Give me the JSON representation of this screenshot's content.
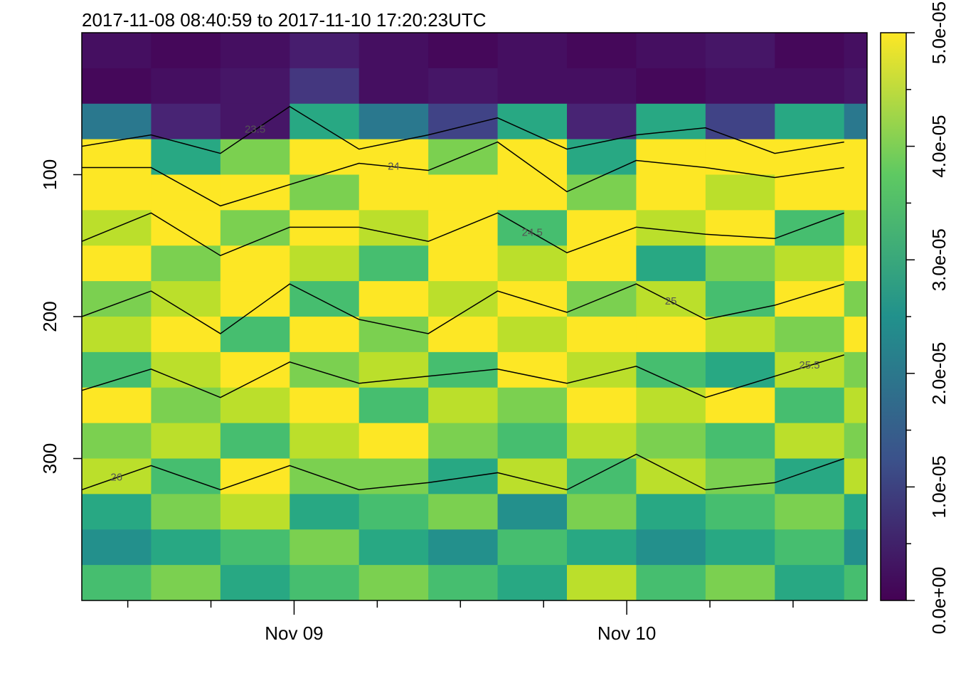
{
  "chart_data": {
    "type": "heatmap",
    "title": "2017-11-08 08:40:59 to 2017-11-10 17:20:23UTC",
    "xlim": [
      "2017-11-08 08:40:59",
      "2017-11-10 17:20:23"
    ],
    "xticks": [
      {
        "value": "2017-11-09 00:00:00",
        "label": "Nov 09"
      },
      {
        "value": "2017-11-10 00:00:00",
        "label": "Nov 10"
      }
    ],
    "xminorticks": [
      "2017-11-08 12:00:00",
      "2017-11-08 18:00:00",
      "2017-11-09 06:00:00",
      "2017-11-09 12:00:00",
      "2017-11-09 18:00:00",
      "2017-11-10 06:00:00",
      "2017-11-10 12:00:00"
    ],
    "ylim": [
      400,
      0
    ],
    "yticks": [
      100,
      200,
      300
    ],
    "x": [
      "2017-11-08 08:40:59",
      "2017-11-08 13:40:59",
      "2017-11-08 18:40:59",
      "2017-11-08 23:40:59",
      "2017-11-09 04:40:59",
      "2017-11-09 09:40:59",
      "2017-11-09 14:40:59",
      "2017-11-09 19:40:59",
      "2017-11-10 00:40:59",
      "2017-11-10 05:40:59",
      "2017-11-10 10:40:59",
      "2017-11-10 15:40:59"
    ],
    "y": [
      0,
      25,
      50,
      75,
      100,
      125,
      150,
      175,
      200,
      225,
      250,
      275,
      300,
      325,
      350,
      375
    ],
    "z": [
      [
        2e-06,
        1e-06,
        2e-06,
        4e-06,
        2e-06,
        1e-06,
        2e-06,
        1e-06,
        2e-06,
        3e-06,
        1e-06,
        2e-06
      ],
      [
        1e-06,
        2e-06,
        3e-06,
        8e-06,
        2e-06,
        3e-06,
        2e-06,
        2e-06,
        1e-06,
        2e-06,
        2e-06,
        3e-06
      ],
      [
        2e-05,
        5e-06,
        3e-06,
        3e-05,
        2e-05,
        1e-05,
        3e-05,
        5e-06,
        3e-05,
        1e-05,
        3e-05,
        2e-05
      ],
      [
        5e-05,
        3e-05,
        4e-05,
        5e-05,
        5e-05,
        4e-05,
        5e-05,
        3e-05,
        5e-05,
        5e-05,
        5e-05,
        5e-05
      ],
      [
        5e-05,
        5e-05,
        5e-05,
        4e-05,
        5e-05,
        5e-05,
        5e-05,
        4e-05,
        5e-05,
        4.5e-05,
        5e-05,
        5e-05
      ],
      [
        4.5e-05,
        5e-05,
        4e-05,
        5e-05,
        4.5e-05,
        5e-05,
        3.5e-05,
        5e-05,
        4.5e-05,
        5e-05,
        3.5e-05,
        4.5e-05
      ],
      [
        5e-05,
        4e-05,
        5e-05,
        4.5e-05,
        3.5e-05,
        5e-05,
        4.5e-05,
        5e-05,
        3e-05,
        4e-05,
        4.5e-05,
        5e-05
      ],
      [
        4e-05,
        4.5e-05,
        5e-05,
        3.5e-05,
        5e-05,
        4.5e-05,
        5e-05,
        4e-05,
        4.5e-05,
        3.5e-05,
        5e-05,
        4e-05
      ],
      [
        4.5e-05,
        5e-05,
        3.5e-05,
        5e-05,
        4e-05,
        5e-05,
        4.5e-05,
        5e-05,
        5e-05,
        4.5e-05,
        4e-05,
        5e-05
      ],
      [
        3.5e-05,
        4.5e-05,
        5e-05,
        4e-05,
        4.5e-05,
        3.5e-05,
        5e-05,
        4.5e-05,
        3.5e-05,
        3e-05,
        4.5e-05,
        4e-05
      ],
      [
        5e-05,
        4e-05,
        4.5e-05,
        5e-05,
        3.5e-05,
        4.5e-05,
        4e-05,
        5e-05,
        4.5e-05,
        5e-05,
        3.5e-05,
        4.5e-05
      ],
      [
        4e-05,
        4.5e-05,
        3.5e-05,
        4.5e-05,
        5e-05,
        4e-05,
        3.5e-05,
        4.5e-05,
        4e-05,
        3.5e-05,
        4.5e-05,
        4e-05
      ],
      [
        4.5e-05,
        3.5e-05,
        5e-05,
        4e-05,
        4e-05,
        3e-05,
        4.5e-05,
        3.5e-05,
        4.5e-05,
        4e-05,
        3e-05,
        4.5e-05
      ],
      [
        3e-05,
        4e-05,
        4.5e-05,
        3e-05,
        3.5e-05,
        4e-05,
        2.5e-05,
        4e-05,
        3e-05,
        3.5e-05,
        4e-05,
        3e-05
      ],
      [
        2.5e-05,
        3e-05,
        3.5e-05,
        4e-05,
        3e-05,
        2.5e-05,
        3.5e-05,
        3e-05,
        2.5e-05,
        3e-05,
        3.5e-05,
        2.5e-05
      ],
      [
        3.5e-05,
        4e-05,
        3e-05,
        3.5e-05,
        4e-05,
        3.5e-05,
        3e-05,
        4.5e-05,
        3.5e-05,
        4e-05,
        3e-05,
        3.5e-05
      ]
    ],
    "zlim": [
      0,
      5e-05
    ],
    "zticks": [
      {
        "value": 0,
        "label": "0.0e+00"
      },
      {
        "value": 1e-05,
        "label": "1.0e-05"
      },
      {
        "value": 2e-05,
        "label": "2.0e-05"
      },
      {
        "value": 3e-05,
        "label": "3.0e-05"
      },
      {
        "value": 4e-05,
        "label": "4.0e-05"
      },
      {
        "value": 5e-05,
        "label": "5.0e-05"
      }
    ],
    "contours": [
      {
        "level": 23.5,
        "y": [
          80,
          72,
          85,
          52,
          82,
          72,
          60,
          82,
          72,
          67,
          85,
          77
        ]
      },
      {
        "level": 24,
        "y": [
          95,
          95,
          122,
          107,
          92,
          97,
          77,
          112,
          90,
          95,
          102,
          95
        ]
      },
      {
        "level": 24.5,
        "y": [
          147,
          127,
          157,
          137,
          137,
          147,
          127,
          155,
          137,
          142,
          145,
          127
        ]
      },
      {
        "level": 25,
        "y": [
          200,
          182,
          212,
          177,
          202,
          212,
          182,
          197,
          177,
          202,
          192,
          177
        ]
      },
      {
        "level": 25.5,
        "y": [
          252,
          237,
          257,
          232,
          247,
          242,
          237,
          247,
          235,
          257,
          242,
          227
        ]
      },
      {
        "level": 26,
        "y": [
          322,
          305,
          322,
          305,
          322,
          317,
          310,
          322,
          297,
          322,
          317,
          300
        ]
      }
    ]
  }
}
